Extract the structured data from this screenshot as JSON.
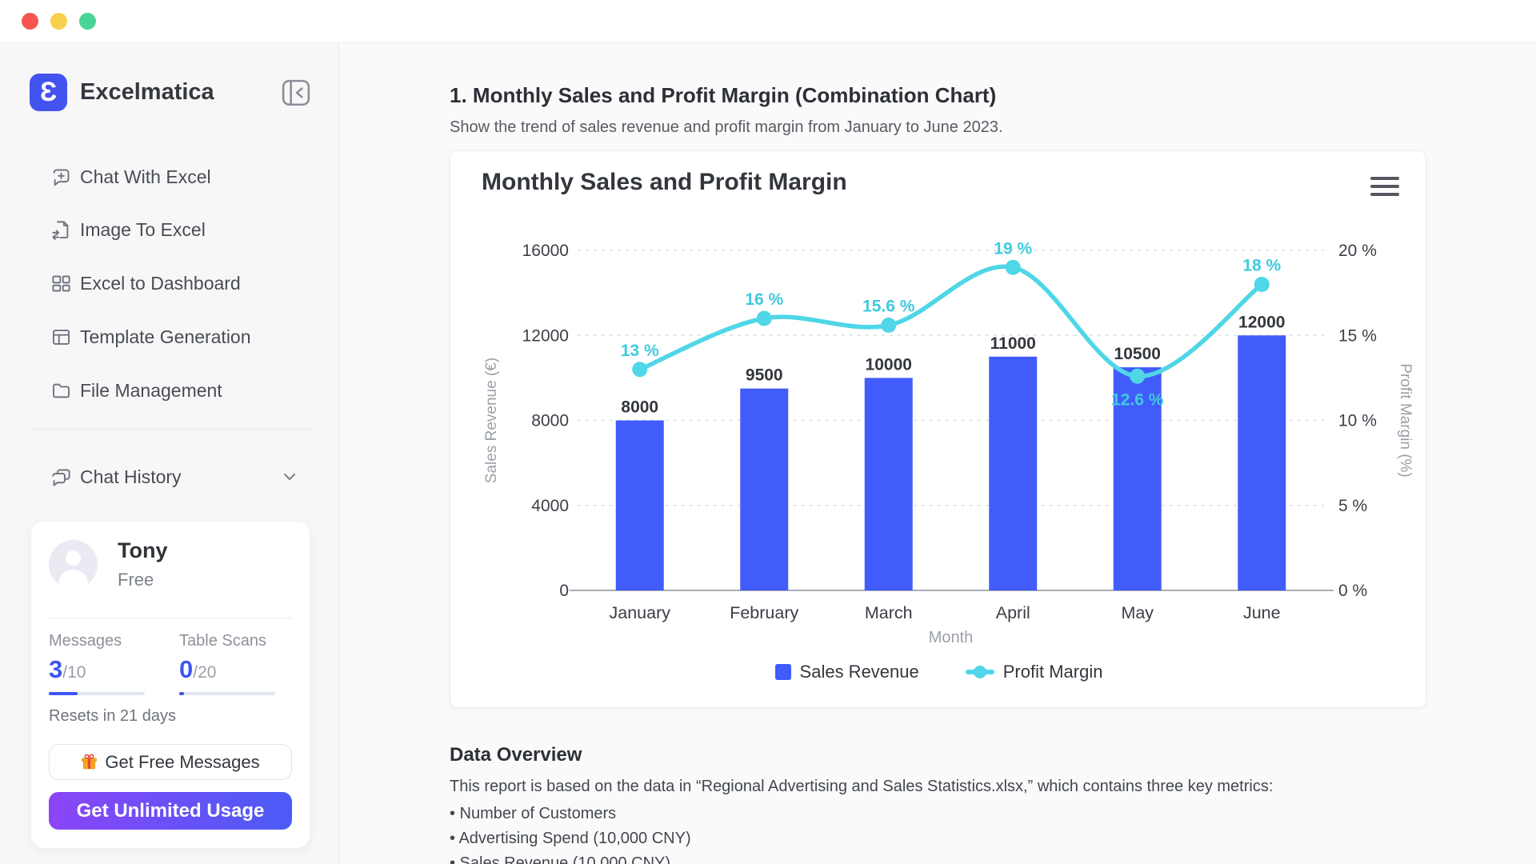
{
  "window": {
    "traffic_light_colors": [
      "#f6564f",
      "#f6d04b",
      "#48d597"
    ]
  },
  "sidebar": {
    "brand": {
      "name": "Excelmatica",
      "logo_glyph": "Ɛ",
      "logo_color": "#4353ef"
    },
    "nav": [
      {
        "label": "Chat With Excel",
        "icon": "chat-plus-icon"
      },
      {
        "label": "Image To Excel",
        "icon": "image-to-excel-icon"
      },
      {
        "label": "Excel to Dashboard",
        "icon": "dashboard-icon"
      },
      {
        "label": "Template Generation",
        "icon": "template-icon"
      },
      {
        "label": "File Management",
        "icon": "folder-icon"
      }
    ],
    "chat_history": {
      "label": "Chat History"
    },
    "user_card": {
      "name": "Tony",
      "plan": "Free",
      "stats": [
        {
          "label": "Messages",
          "used": "3",
          "total": "/10",
          "progress": 0.3
        },
        {
          "label": "Table Scans",
          "used": "0",
          "total": "/20",
          "progress": 0.05
        }
      ],
      "resets_note": "Resets in 21 days",
      "free_button_label": "Get Free Messages",
      "upgrade_button_label": "Get Unlimited Usage"
    }
  },
  "main": {
    "section_title": "1. Monthly Sales and Profit Margin (Combination Chart)",
    "section_subtitle": "Show the trend of sales revenue and profit margin from January to June 2023.",
    "data_overview": {
      "title": "Data Overview",
      "intro": "This report is based on the data in “Regional Advertising and Sales Statistics.xlsx,” which contains three key metrics:",
      "bullets": [
        "• Number of Customers",
        "• Advertising Spend (10,000 CNY)",
        "• Sales Revenue (10,000 CNY)"
      ]
    }
  },
  "chart_data": {
    "type": "combo-bar-line",
    "title": "Monthly Sales and Profit Margin",
    "categories": [
      "January",
      "February",
      "March",
      "April",
      "May",
      "June"
    ],
    "series": [
      {
        "name": "Sales Revenue",
        "type": "bar",
        "axis": "left",
        "color": "#415cfb",
        "values": [
          8000,
          9500,
          10000,
          11000,
          10500,
          12000
        ]
      },
      {
        "name": "Profit Margin",
        "type": "line",
        "axis": "right",
        "color": "#4fd6e7",
        "values": [
          13,
          16,
          15.6,
          19,
          12.6,
          18
        ],
        "labels": [
          "13 %",
          "16 %",
          "15.6 %",
          "19 %",
          "12.6 %",
          "18 %"
        ],
        "label_below": [
          false,
          false,
          false,
          false,
          true,
          false
        ]
      }
    ],
    "xlabel": "Month",
    "left_axis": {
      "title": "Sales Revenue (€)",
      "max": 16000,
      "ticks": [
        0,
        4000,
        8000,
        12000,
        16000
      ],
      "tick_labels": [
        "0",
        "4000",
        "8000",
        "12000",
        "16000"
      ]
    },
    "right_axis": {
      "title": "Profit Margin  (%)",
      "max": 20,
      "ticks": [
        0,
        5,
        10,
        15,
        20
      ],
      "tick_labels": [
        "0 %",
        "5 %",
        "10 %",
        "15 %",
        "20 %"
      ]
    },
    "grid": "horizontal dashed",
    "legend_position": "bottom"
  }
}
